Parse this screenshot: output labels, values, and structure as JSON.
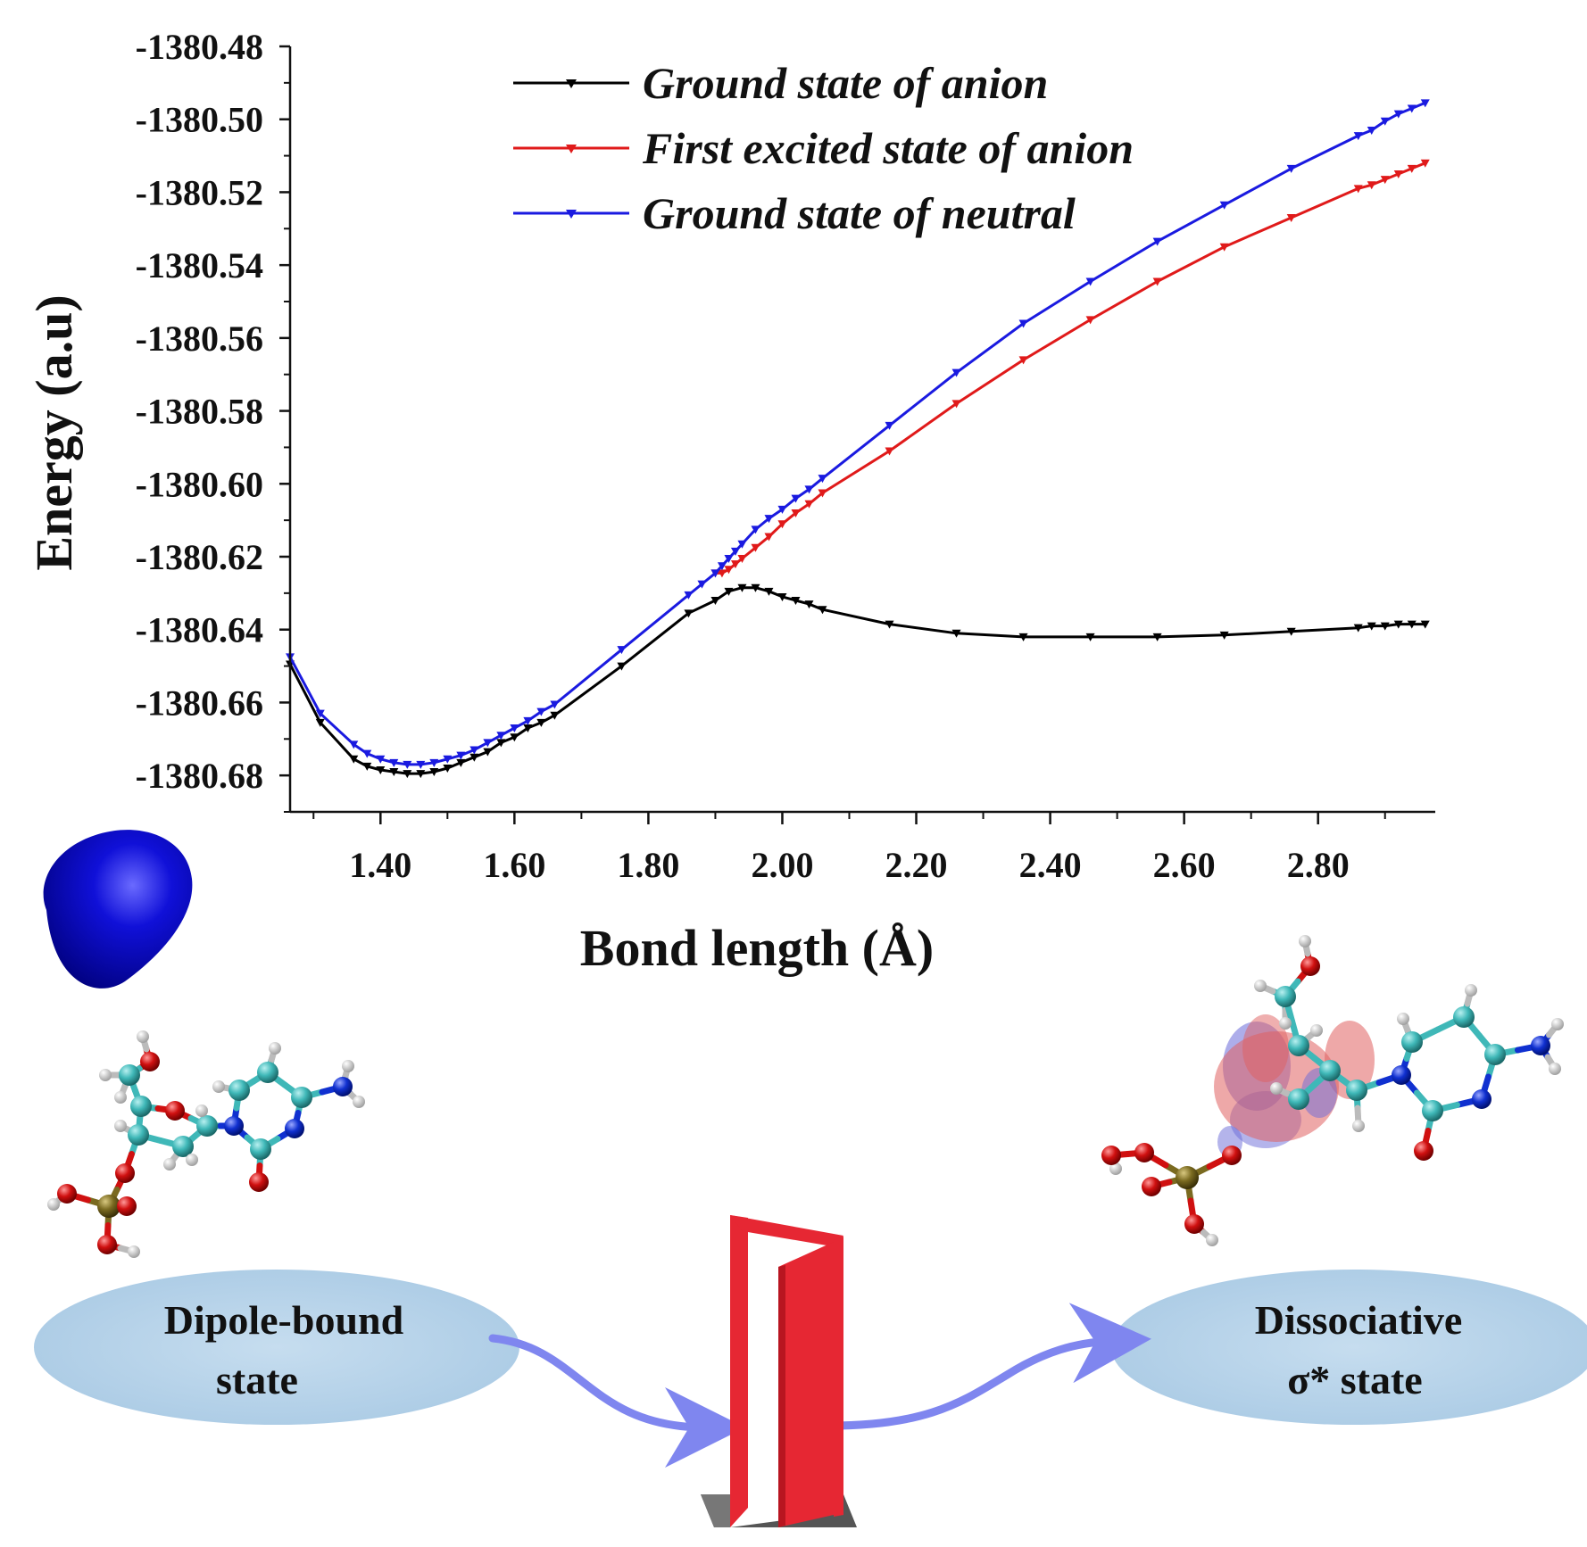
{
  "chart_data": {
    "type": "line",
    "xlabel": "Bond length (Å)",
    "ylabel": "Energy (a.u)",
    "xlim": [
      1.265,
      2.975
    ],
    "ylim": [
      -1380.69,
      -1380.48
    ],
    "x_ticks": [
      "1.40",
      "1.60",
      "1.80",
      "2.00",
      "2.20",
      "2.40",
      "2.60",
      "2.80"
    ],
    "y_ticks": [
      "-1380.48",
      "-1380.50",
      "-1380.52",
      "-1380.54",
      "-1380.56",
      "-1380.58",
      "-1380.60",
      "-1380.62",
      "-1380.64",
      "-1380.66",
      "-1380.68"
    ],
    "legend_position": "top-center",
    "series": [
      {
        "name": "Ground state of anion",
        "color": "#000000",
        "x": [
          1.265,
          1.31,
          1.36,
          1.38,
          1.4,
          1.42,
          1.44,
          1.46,
          1.48,
          1.5,
          1.52,
          1.54,
          1.56,
          1.58,
          1.6,
          1.62,
          1.64,
          1.66,
          1.76,
          1.86,
          1.9,
          1.92,
          1.94,
          1.96,
          1.98,
          2.0,
          2.02,
          2.04,
          2.06,
          2.16,
          2.26,
          2.36,
          2.46,
          2.56,
          2.66,
          2.76,
          2.86,
          2.88,
          2.9,
          2.92,
          2.94,
          2.96
        ],
        "y": [
          -1380.6495,
          -1380.6655,
          -1380.6755,
          -1380.6775,
          -1380.6785,
          -1380.679,
          -1380.6795,
          -1380.6795,
          -1380.679,
          -1380.678,
          -1380.6765,
          -1380.675,
          -1380.6735,
          -1380.671,
          -1380.6695,
          -1380.667,
          -1380.6655,
          -1380.6635,
          -1380.65,
          -1380.6355,
          -1380.632,
          -1380.6295,
          -1380.6285,
          -1380.6285,
          -1380.6295,
          -1380.631,
          -1380.632,
          -1380.633,
          -1380.6345,
          -1380.6385,
          -1380.641,
          -1380.642,
          -1380.642,
          -1380.642,
          -1380.6415,
          -1380.6405,
          -1380.6395,
          -1380.639,
          -1380.639,
          -1380.6385,
          -1380.6385,
          -1380.6385
        ]
      },
      {
        "name": "First excited state of anion",
        "color": "#e01a1a",
        "x": [
          1.9,
          1.91,
          1.92,
          1.93,
          1.94,
          1.96,
          1.98,
          2.0,
          2.02,
          2.04,
          2.06,
          2.16,
          2.26,
          2.36,
          2.46,
          2.56,
          2.66,
          2.76,
          2.86,
          2.88,
          2.9,
          2.92,
          2.94,
          2.96
        ],
        "y": [
          -1380.6245,
          -1380.6245,
          -1380.6235,
          -1380.622,
          -1380.6205,
          -1380.6175,
          -1380.6145,
          -1380.611,
          -1380.608,
          -1380.6055,
          -1380.6025,
          -1380.591,
          -1380.578,
          -1380.566,
          -1380.555,
          -1380.5445,
          -1380.535,
          -1380.527,
          -1380.519,
          -1380.518,
          -1380.5165,
          -1380.515,
          -1380.5135,
          -1380.512
        ]
      },
      {
        "name": "Ground state of neutral",
        "color": "#1a1ae0",
        "x": [
          1.265,
          1.31,
          1.36,
          1.38,
          1.4,
          1.42,
          1.44,
          1.46,
          1.48,
          1.5,
          1.52,
          1.54,
          1.56,
          1.58,
          1.6,
          1.62,
          1.64,
          1.66,
          1.76,
          1.86,
          1.88,
          1.9,
          1.91,
          1.92,
          1.93,
          1.94,
          1.96,
          1.98,
          2.0,
          2.02,
          2.04,
          2.06,
          2.16,
          2.26,
          2.36,
          2.46,
          2.56,
          2.66,
          2.76,
          2.86,
          2.88,
          2.9,
          2.92,
          2.94,
          2.96
        ],
        "y": [
          -1380.6475,
          -1380.663,
          -1380.6715,
          -1380.674,
          -1380.6755,
          -1380.6765,
          -1380.677,
          -1380.677,
          -1380.6765,
          -1380.6755,
          -1380.6745,
          -1380.673,
          -1380.671,
          -1380.669,
          -1380.667,
          -1380.665,
          -1380.6625,
          -1380.6605,
          -1380.6455,
          -1380.6305,
          -1380.6275,
          -1380.6245,
          -1380.6225,
          -1380.6205,
          -1380.6185,
          -1380.6165,
          -1380.6125,
          -1380.6095,
          -1380.607,
          -1380.604,
          -1380.6015,
          -1380.5985,
          -1380.584,
          -1380.5695,
          -1380.556,
          -1380.5445,
          -1380.5335,
          -1380.5235,
          -1380.5135,
          -1380.5045,
          -1380.503,
          -1380.5005,
          -1380.4985,
          -1380.497,
          -1380.4955
        ]
      }
    ]
  },
  "diagram": {
    "left_state": [
      "Dipole-bound",
      "state"
    ],
    "right_state": [
      "Dissociative",
      "σ* state"
    ]
  },
  "colors": {
    "ellipse_fill": "#b8d4ea",
    "arrow": "#7f86ef",
    "door": "#e62733",
    "orbital_blue": "#0000c8",
    "carbon": "#3fb8b8",
    "oxygen": "#d01010",
    "nitrogen": "#1030d0",
    "hydrogen": "#e8e8e8",
    "phosphorus": "#7a6a20"
  },
  "icons": [
    "dipole-orbital-icon",
    "molecule-icon",
    "door-icon",
    "sigma-orbital-icon"
  ]
}
